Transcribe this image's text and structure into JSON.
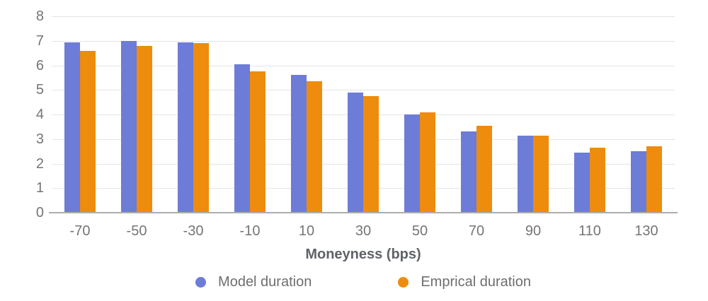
{
  "chart_data": {
    "type": "bar",
    "title": "",
    "xlabel": "Moneyness (bps)",
    "ylabel": "",
    "ylim": [
      0,
      8
    ],
    "yticks": [
      0,
      1,
      2,
      3,
      4,
      5,
      6,
      7,
      8
    ],
    "grid": true,
    "legend_position": "bottom",
    "categories": [
      "-70",
      "-50",
      "-30",
      "-10",
      "10",
      "30",
      "50",
      "70",
      "90",
      "110",
      "130"
    ],
    "series": [
      {
        "name": "Model duration",
        "color": "#6d7cd6",
        "values": [
          6.95,
          7.0,
          6.95,
          6.05,
          5.6,
          4.9,
          4.0,
          3.3,
          3.15,
          2.45,
          2.5
        ]
      },
      {
        "name": "Emprical duration",
        "color": "#ee8c0d",
        "values": [
          6.6,
          6.8,
          6.9,
          5.75,
          5.35,
          4.75,
          4.1,
          3.55,
          3.15,
          2.65,
          2.7
        ]
      }
    ]
  }
}
